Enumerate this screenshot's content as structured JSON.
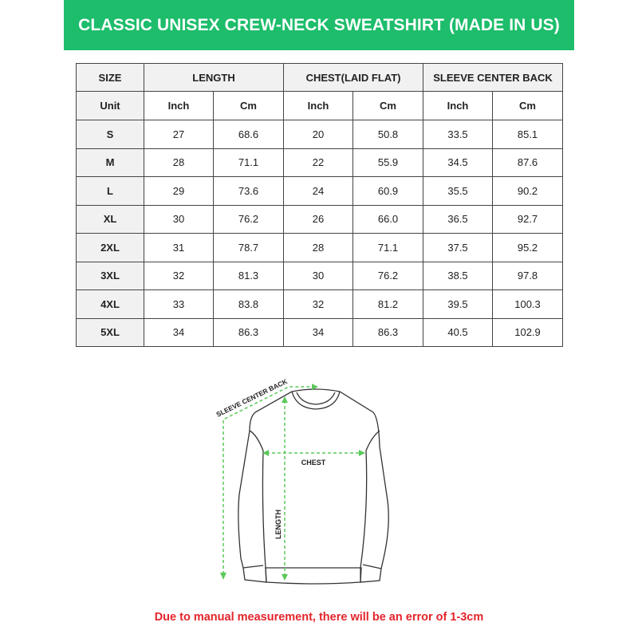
{
  "title": "CLASSIC UNISEX CREW-NECK SWEATSHIRT (MADE IN US)",
  "colors": {
    "banner": "#1dbd6b",
    "note": "#e3242b",
    "measure_lines": "#5cc95c"
  },
  "table": {
    "headers": [
      "SIZE",
      "LENGTH",
      "CHEST(LAID FLAT)",
      "SLEEVE CENTER BACK"
    ],
    "unit_row": [
      "Unit",
      "Inch",
      "Cm",
      "Inch",
      "Cm",
      "Inch",
      "Cm"
    ],
    "rows": [
      [
        "S",
        "27",
        "68.6",
        "20",
        "50.8",
        "33.5",
        "85.1"
      ],
      [
        "M",
        "28",
        "71.1",
        "22",
        "55.9",
        "34.5",
        "87.6"
      ],
      [
        "L",
        "29",
        "73.6",
        "24",
        "60.9",
        "35.5",
        "90.2"
      ],
      [
        "XL",
        "30",
        "76.2",
        "26",
        "66.0",
        "36.5",
        "92.7"
      ],
      [
        "2XL",
        "31",
        "78.7",
        "28",
        "71.1",
        "37.5",
        "95.2"
      ],
      [
        "3XL",
        "32",
        "81.3",
        "30",
        "76.2",
        "38.5",
        "97.8"
      ],
      [
        "4XL",
        "33",
        "83.8",
        "32",
        "81.2",
        "39.5",
        "100.3"
      ],
      [
        "5XL",
        "34",
        "86.3",
        "34",
        "86.3",
        "40.5",
        "102.9"
      ]
    ]
  },
  "diagram": {
    "sleeve_label": "SLEEVE CENTER BACK",
    "chest_label": "CHEST",
    "length_label": "LENGTH"
  },
  "note": "Due to manual measurement, there will be an error of 1-3cm"
}
